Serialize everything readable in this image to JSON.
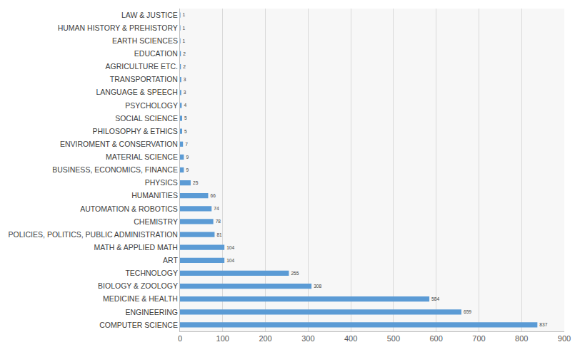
{
  "chart_data": {
    "type": "bar",
    "orientation": "horizontal",
    "categories": [
      "COMPUTER SCIENCE",
      "ENGINEERING",
      "MEDICINE & HEALTH",
      "BIOLOGY & ZOOLOGY",
      "TECHNOLOGY",
      "ART",
      "MATH & APPLIED MATH",
      "POLICIES, POLITICS, PUBLIC ADMINISTRATION",
      "CHEMISTRY",
      "AUTOMATION & ROBOTICS",
      "HUMANITIES",
      "PHYSICS",
      "BUSINESS, ECONOMICS, FINANCE",
      "MATERIAL SCIENCE",
      "ENVIROMENT & CONSERVATION",
      "PHILOSOPHY & ETHICS",
      "SOCIAL SCIENCE",
      "PSYCHOLOGY",
      "LANGUAGE & SPEECH",
      "TRANSPORTATION",
      "AGRICULTURE ETC.",
      "EDUCATION",
      "EARTH SCIENCES",
      "HUMAN HISTORY & PREHISTORY",
      "LAW & JUSTICE"
    ],
    "values": [
      837,
      659,
      584,
      308,
      255,
      104,
      104,
      81,
      78,
      74,
      66,
      25,
      9,
      9,
      7,
      5,
      5,
      4,
      3,
      3,
      2,
      2,
      1,
      1,
      1
    ],
    "color": "#5b9bd5",
    "xlim": [
      0,
      900
    ],
    "xticks": [
      0,
      100,
      200,
      300,
      400,
      500,
      600,
      700,
      800,
      900
    ],
    "grid": true,
    "data_labels": true
  }
}
